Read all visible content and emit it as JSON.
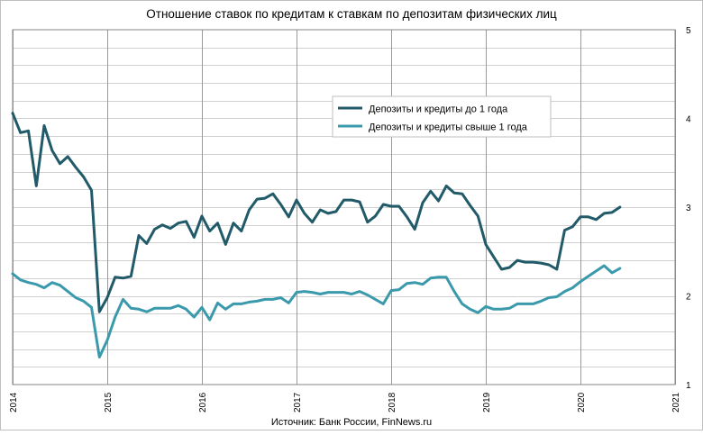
{
  "chart_data": {
    "type": "line",
    "title": "Отношение ставок по кредитам к ставкам по депозитам физических лиц",
    "source": "Источник: Банк России, FinNews.ru",
    "x_ticks": [
      "2014",
      "2015",
      "2016",
      "2017",
      "2018",
      "2019",
      "2020",
      "2021"
    ],
    "y_ticks": [
      "1",
      "2",
      "3",
      "4",
      "5"
    ],
    "xlim": [
      2014,
      2021
    ],
    "ylim": [
      1,
      5
    ],
    "y_axis_side": "right",
    "grid": true,
    "legend_position": "upper-center-right",
    "series": [
      {
        "name": "Депозиты и кредиты до 1 года",
        "color": "#215a68",
        "x": [
          2014.0,
          2014.083,
          2014.167,
          2014.25,
          2014.333,
          2014.417,
          2014.5,
          2014.583,
          2014.667,
          2014.75,
          2014.833,
          2014.917,
          2015.0,
          2015.083,
          2015.167,
          2015.25,
          2015.333,
          2015.417,
          2015.5,
          2015.583,
          2015.667,
          2015.75,
          2015.833,
          2015.917,
          2016.0,
          2016.083,
          2016.167,
          2016.25,
          2016.333,
          2016.417,
          2016.5,
          2016.583,
          2016.667,
          2016.75,
          2016.833,
          2016.917,
          2017.0,
          2017.083,
          2017.167,
          2017.25,
          2017.333,
          2017.417,
          2017.5,
          2017.583,
          2017.667,
          2017.75,
          2017.833,
          2017.917,
          2018.0,
          2018.083,
          2018.167,
          2018.25,
          2018.333,
          2018.417,
          2018.5,
          2018.583,
          2018.667,
          2018.75,
          2018.833,
          2018.917,
          2019.0,
          2019.083,
          2019.167,
          2019.25,
          2019.333,
          2019.417,
          2019.5,
          2019.583,
          2019.667,
          2019.75,
          2019.833,
          2019.917,
          2020.0,
          2020.083,
          2020.167,
          2020.25,
          2020.333,
          2020.417
        ],
        "y": [
          4.06,
          3.84,
          3.86,
          3.24,
          3.92,
          3.64,
          3.49,
          3.57,
          3.45,
          3.34,
          3.19,
          1.82,
          1.98,
          2.21,
          2.2,
          2.22,
          2.68,
          2.59,
          2.75,
          2.8,
          2.76,
          2.82,
          2.84,
          2.66,
          2.9,
          2.73,
          2.82,
          2.58,
          2.82,
          2.73,
          2.97,
          3.09,
          3.1,
          3.15,
          3.03,
          2.89,
          3.08,
          2.93,
          2.83,
          2.97,
          2.93,
          2.95,
          3.08,
          3.08,
          3.06,
          2.83,
          2.9,
          3.03,
          3.01,
          3.01,
          2.89,
          2.75,
          3.05,
          3.18,
          3.07,
          3.24,
          3.16,
          3.15,
          3.02,
          2.9,
          2.58,
          2.44,
          2.3,
          2.32,
          2.4,
          2.38,
          2.38,
          2.37,
          2.35,
          2.3,
          2.74,
          2.78,
          2.89,
          2.89,
          2.86,
          2.93,
          2.94,
          3.0
        ]
      },
      {
        "name": "Депозиты и кредиты свыше 1 года",
        "color": "#3a9aab",
        "x": [
          2014.0,
          2014.083,
          2014.167,
          2014.25,
          2014.333,
          2014.417,
          2014.5,
          2014.583,
          2014.667,
          2014.75,
          2014.833,
          2014.917,
          2015.0,
          2015.083,
          2015.167,
          2015.25,
          2015.333,
          2015.417,
          2015.5,
          2015.583,
          2015.667,
          2015.75,
          2015.833,
          2015.917,
          2016.0,
          2016.083,
          2016.167,
          2016.25,
          2016.333,
          2016.417,
          2016.5,
          2016.583,
          2016.667,
          2016.75,
          2016.833,
          2016.917,
          2017.0,
          2017.083,
          2017.167,
          2017.25,
          2017.333,
          2017.417,
          2017.5,
          2017.583,
          2017.667,
          2017.75,
          2017.833,
          2017.917,
          2018.0,
          2018.083,
          2018.167,
          2018.25,
          2018.333,
          2018.417,
          2018.5,
          2018.583,
          2018.667,
          2018.75,
          2018.833,
          2018.917,
          2019.0,
          2019.083,
          2019.167,
          2019.25,
          2019.333,
          2019.417,
          2019.5,
          2019.583,
          2019.667,
          2019.75,
          2019.833,
          2019.917,
          2020.0,
          2020.083,
          2020.167,
          2020.25,
          2020.333,
          2020.417
        ],
        "y": [
          2.25,
          2.18,
          2.15,
          2.13,
          2.09,
          2.15,
          2.12,
          2.05,
          1.98,
          1.94,
          1.87,
          1.31,
          1.5,
          1.76,
          1.96,
          1.86,
          1.85,
          1.82,
          1.86,
          1.86,
          1.86,
          1.89,
          1.85,
          1.76,
          1.87,
          1.73,
          1.92,
          1.85,
          1.91,
          1.91,
          1.93,
          1.94,
          1.96,
          1.96,
          1.98,
          1.92,
          2.04,
          2.05,
          2.04,
          2.02,
          2.04,
          2.04,
          2.04,
          2.02,
          2.05,
          2.01,
          1.96,
          1.91,
          2.06,
          2.07,
          2.14,
          2.15,
          2.13,
          2.2,
          2.21,
          2.21,
          2.05,
          1.91,
          1.85,
          1.81,
          1.88,
          1.85,
          1.85,
          1.86,
          1.91,
          1.91,
          1.91,
          1.94,
          1.98,
          1.99,
          2.05,
          2.09,
          2.16,
          2.22,
          2.28,
          2.34,
          2.26,
          2.31
        ]
      }
    ]
  }
}
